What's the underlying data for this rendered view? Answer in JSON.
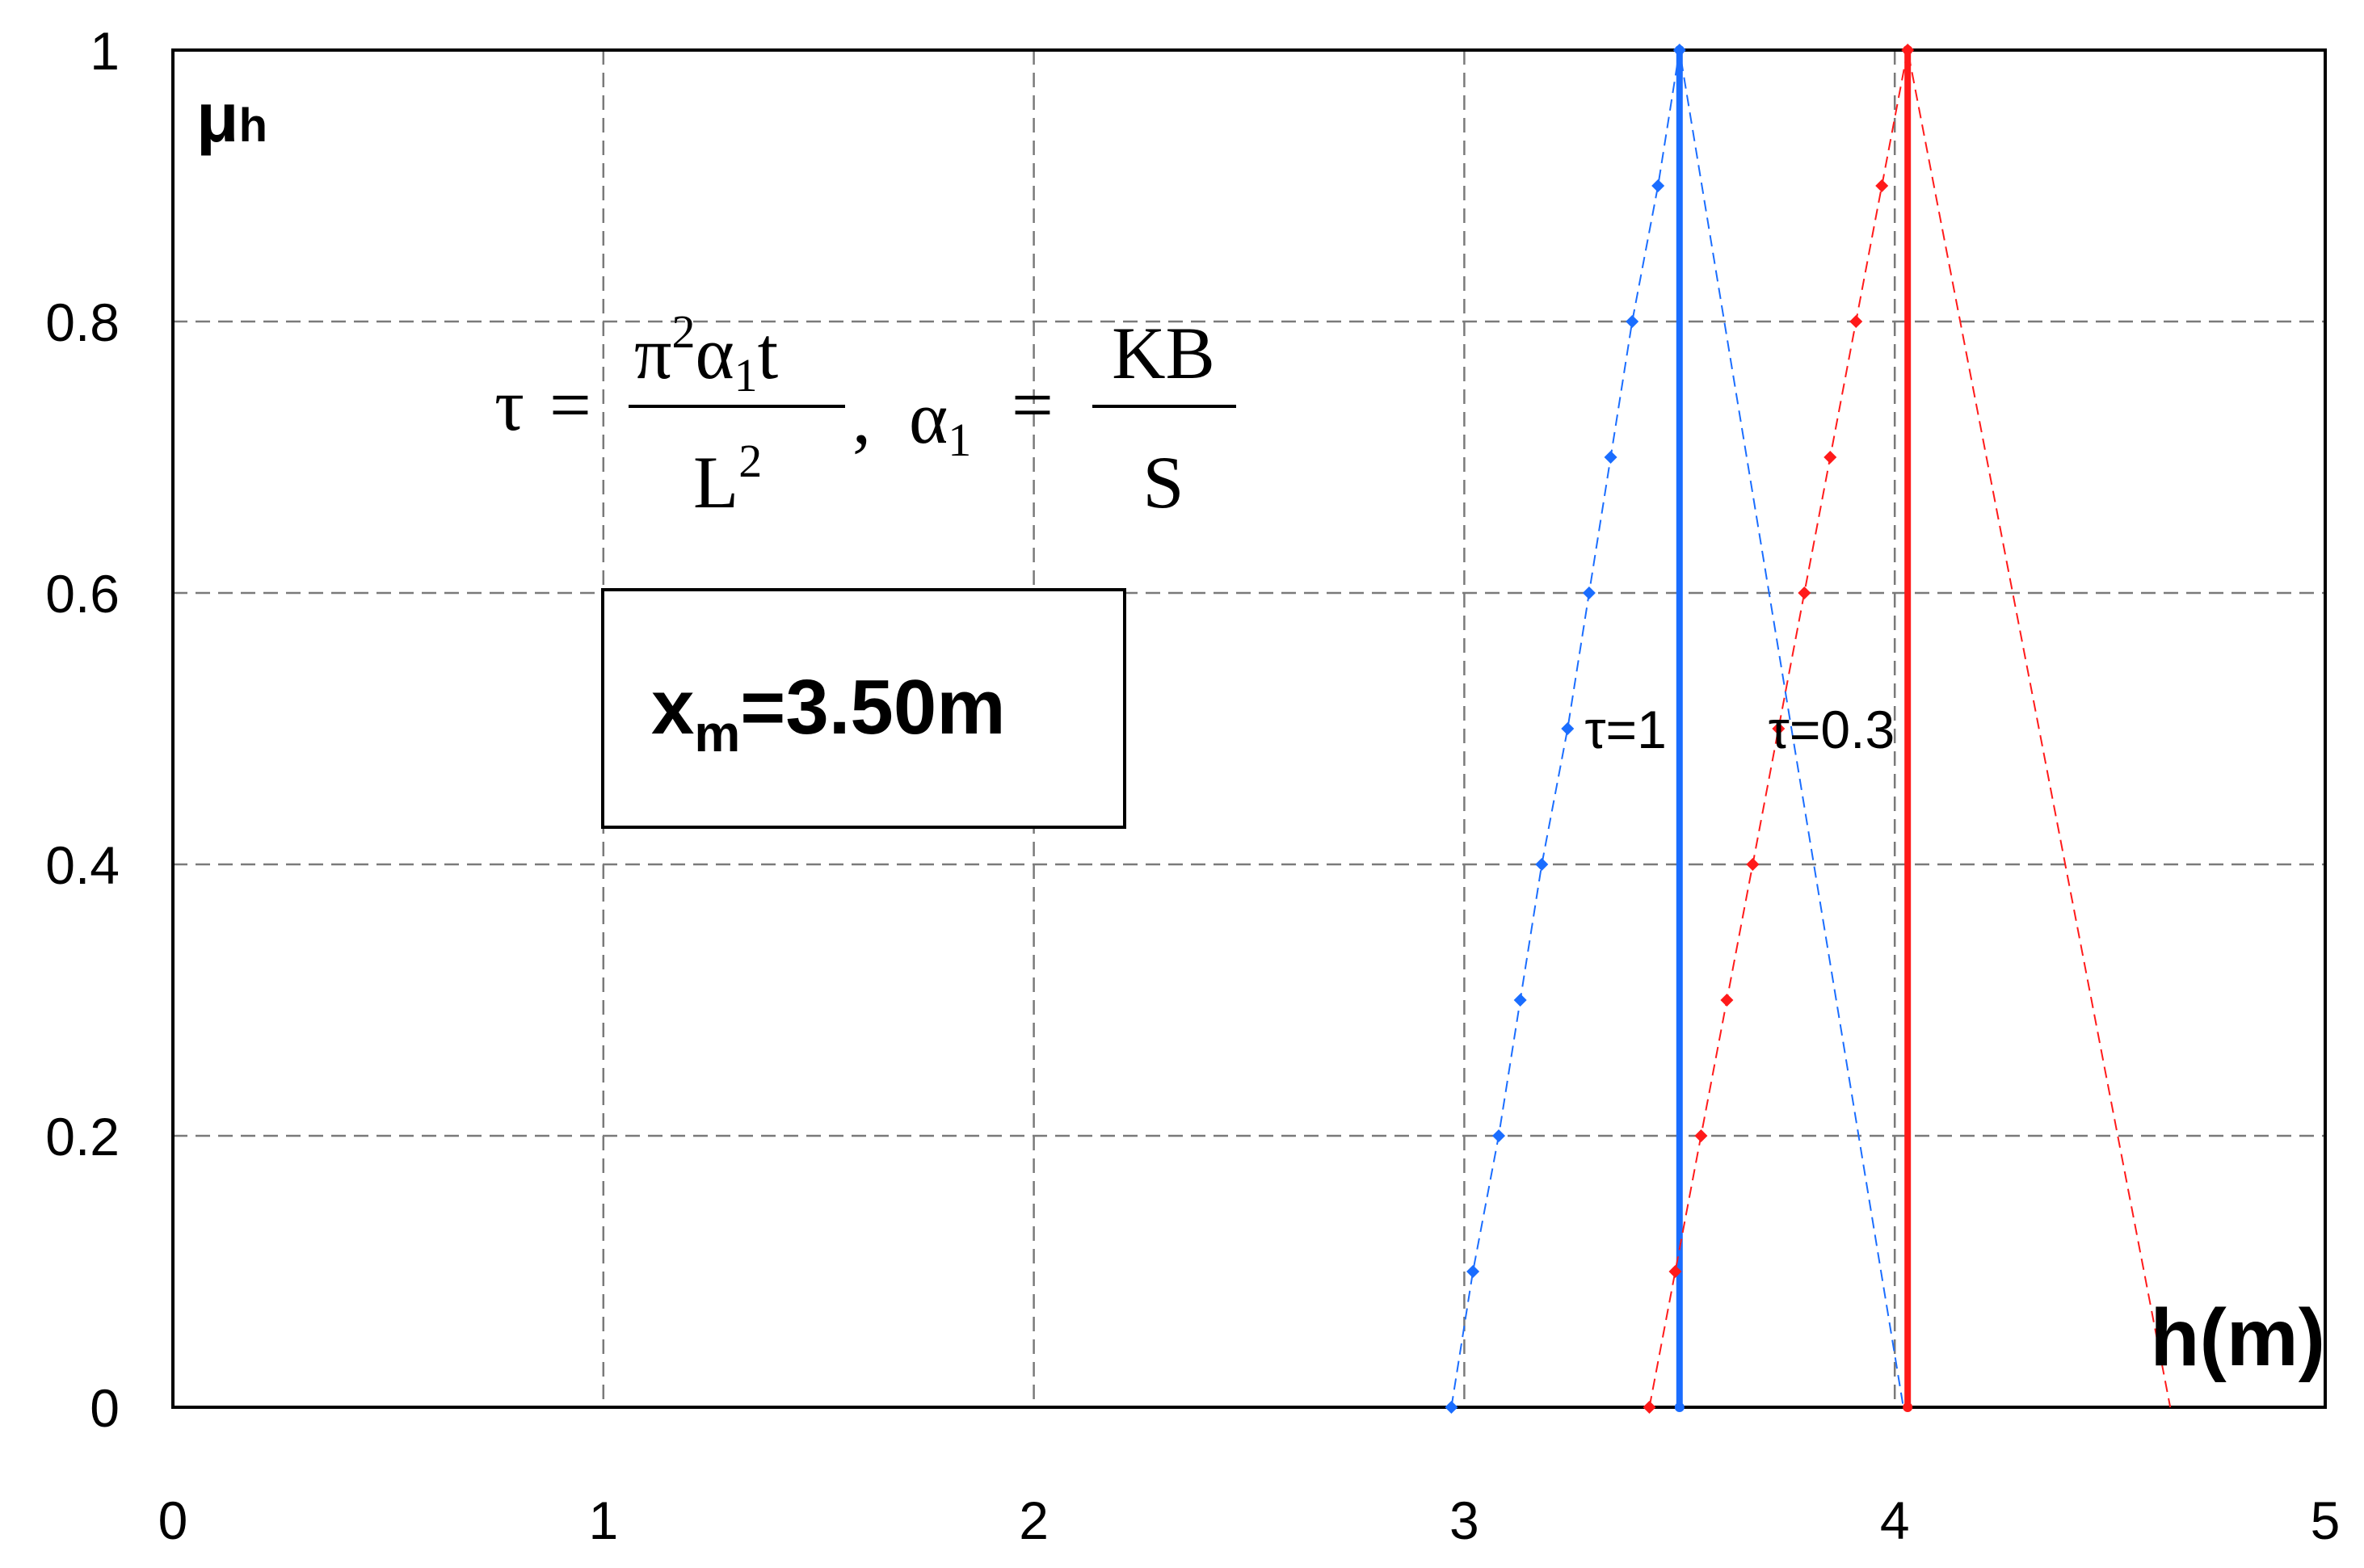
{
  "chart_data": {
    "type": "line",
    "xlabel": "h(m)",
    "ylabel_main": "μ",
    "ylabel_sub": "h",
    "xlim": [
      0,
      5
    ],
    "ylim": [
      0,
      1
    ],
    "x_ticks": [
      "0",
      "1",
      "2",
      "3",
      "4",
      "5"
    ],
    "y_ticks": [
      "0",
      "0.2",
      "0.4",
      "0.6",
      "0.8",
      "1"
    ],
    "grid": true,
    "formula": {
      "tau": "τ",
      "eq": "=",
      "num1": "π",
      "num1_sup": "2",
      "num1_rest": "α",
      "num1_sub": "1",
      "num1_t": "t",
      "den1": "L",
      "den1_sup": "2",
      "comma": ",",
      "alpha": "α",
      "alpha_sub": "1",
      "eq2": "=",
      "num2": "KB",
      "den2": "S"
    },
    "annotation_box": {
      "main": "x",
      "sub": "m",
      "rest": "=3.50m"
    },
    "series": [
      {
        "name": "τ=1",
        "color": "#1a6dff",
        "style": "dashed-with-markers",
        "mode_x": 3.5,
        "left_points": [
          [
            2.97,
            0
          ],
          [
            3.02,
            0.1
          ],
          [
            3.08,
            0.2
          ],
          [
            3.13,
            0.3
          ],
          [
            3.18,
            0.4
          ],
          [
            3.24,
            0.5
          ],
          [
            3.29,
            0.6
          ],
          [
            3.34,
            0.7
          ],
          [
            3.39,
            0.8
          ],
          [
            3.45,
            0.9
          ],
          [
            3.5,
            1.0
          ]
        ],
        "right_points": [
          [
            3.5,
            1.0
          ],
          [
            4.02,
            0
          ]
        ]
      },
      {
        "name": "τ=0.3",
        "color": "#ff1a1a",
        "style": "dashed-with-markers",
        "mode_x": 4.03,
        "left_points": [
          [
            3.43,
            0
          ],
          [
            3.49,
            0.1
          ],
          [
            3.55,
            0.2
          ],
          [
            3.61,
            0.3
          ],
          [
            3.67,
            0.4
          ],
          [
            3.73,
            0.5
          ],
          [
            3.79,
            0.6
          ],
          [
            3.85,
            0.7
          ],
          [
            3.91,
            0.8
          ],
          [
            3.97,
            0.9
          ],
          [
            4.03,
            1.0
          ]
        ],
        "right_points": [
          [
            4.03,
            1.0
          ],
          [
            4.64,
            0
          ]
        ]
      }
    ]
  }
}
